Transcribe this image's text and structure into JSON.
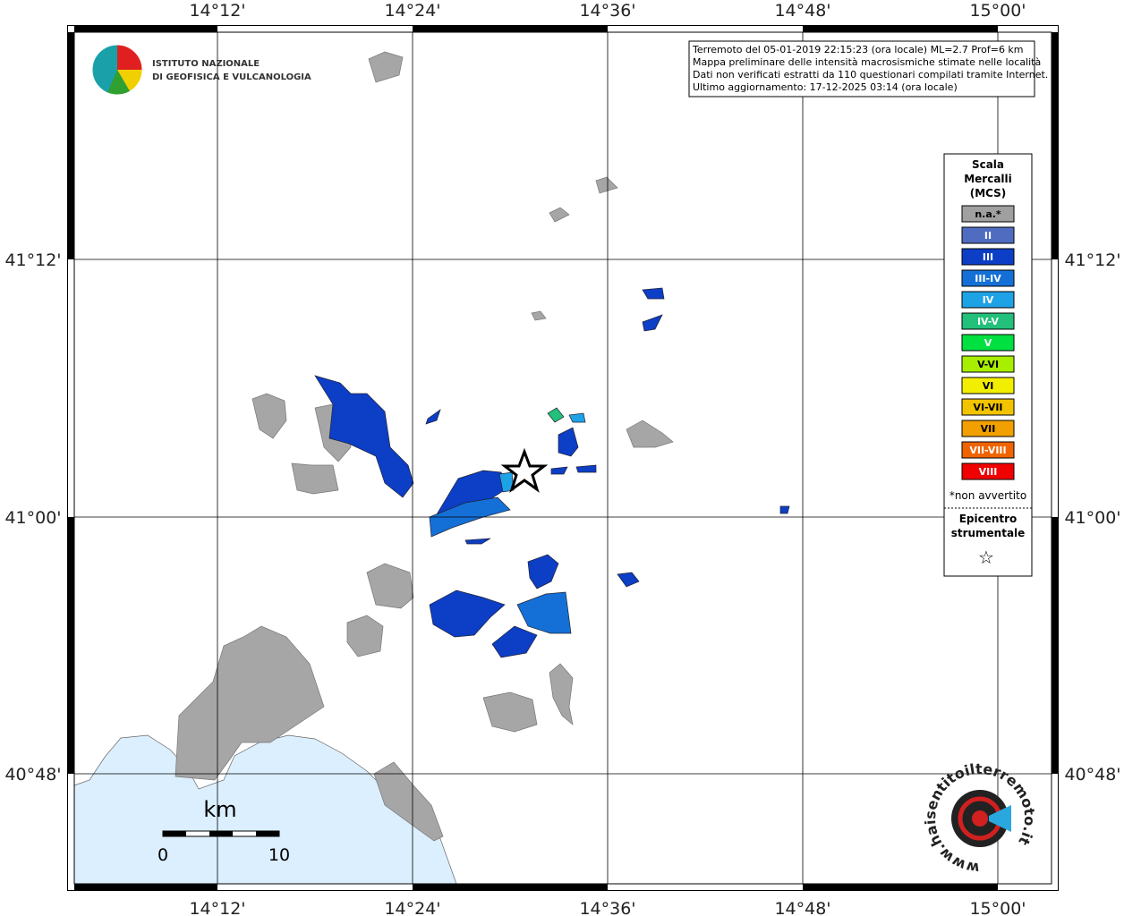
{
  "map": {
    "lon_labels": [
      "14°12'",
      "14°24'",
      "14°36'",
      "14°48'",
      "15°00'"
    ],
    "lat_labels": [
      "41°12'",
      "41°00'",
      "40°48'"
    ]
  },
  "info": {
    "lines": [
      "Terremoto del 05-01-2019 22:15:23 (ora locale) ML=2.7 Prof=6 km",
      "Mappa preliminare delle intensità macrosismiche stimate nelle località",
      "Dati non verificati estratti da 110 questionari compilati tramite Internet.",
      "Ultimo aggiornamento: 17-12-2025 03:14 (ora locale)"
    ]
  },
  "logo": {
    "lines": [
      "ISTITUTO NAZIONALE",
      "DI GEOFISICA E VULCANOLOGIA"
    ]
  },
  "legend": {
    "title": [
      "Scala",
      "Mercalli",
      "(MCS)"
    ],
    "items": [
      {
        "label": "n.a.*",
        "color": "#a0a0a0"
      },
      {
        "label": "II",
        "color": "#4f6cc0"
      },
      {
        "label": "III",
        "color": "#0c3ec6"
      },
      {
        "label": "III-IV",
        "color": "#1470d6"
      },
      {
        "label": "IV",
        "color": "#1ea2e6"
      },
      {
        "label": "IV-V",
        "color": "#22c07a"
      },
      {
        "label": "V",
        "color": "#00e040"
      },
      {
        "label": "V-VI",
        "color": "#a8ee00"
      },
      {
        "label": "VI",
        "color": "#f2ee00"
      },
      {
        "label": "VI-VII",
        "color": "#f2c400"
      },
      {
        "label": "VII",
        "color": "#f2a000"
      },
      {
        "label": "VII-VIII",
        "color": "#f06400"
      },
      {
        "label": "VIII",
        "color": "#f00000"
      }
    ],
    "note": "*non avvertito",
    "epicenter": [
      "Epicentro",
      "strumentale"
    ],
    "star": "☆"
  },
  "scalebar": {
    "unit": "km",
    "ticks": [
      "0",
      "10"
    ]
  },
  "badge": {
    "text": "www.haisentitoilterremoto.it"
  }
}
